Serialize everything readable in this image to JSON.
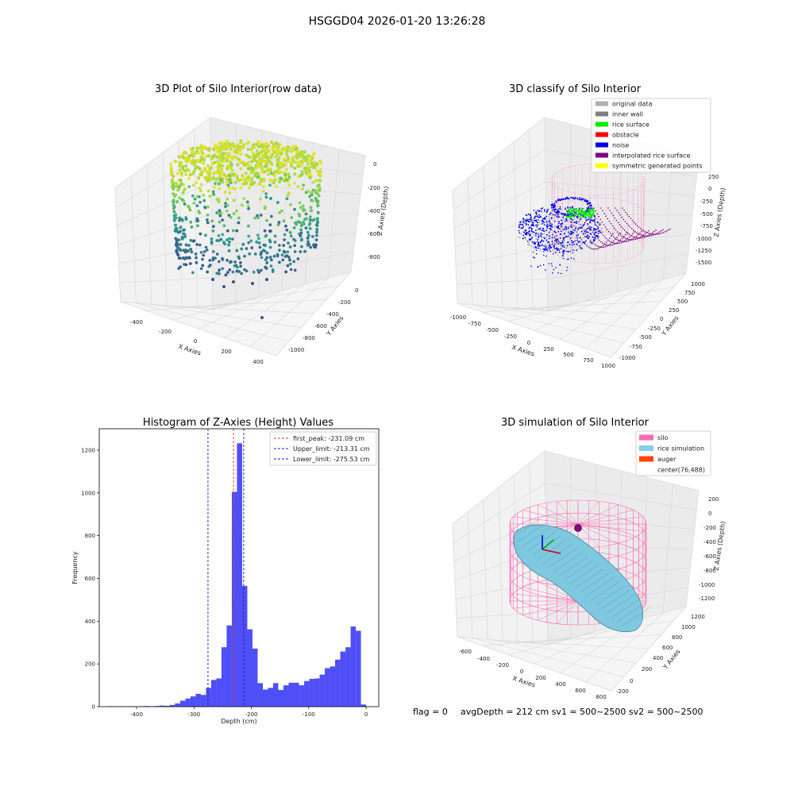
{
  "suptitle": "HSGGD04 2026-01-20 13:26:28",
  "footer": {
    "flag": "flag = 0",
    "stats": "avgDepth = 212 cm  sv1 = 500~2500  sv2 = 500~2500"
  },
  "colors": {
    "hist_bar": "#4f4ff7",
    "peak_line": "#ff2a2a",
    "limit_line": "#1a1acc",
    "silo_wire": "#ff69b4",
    "rice": "#7ec8e0",
    "auger": "#ff4500"
  },
  "plot3d_raw": {
    "title": "3D Plot of Silo Interior(row data)",
    "xlabel": "X Axies",
    "ylabel": "Y Axies",
    "zlabel": "Z Axies (Depth)",
    "xticks": [
      "-400",
      "-200",
      "0",
      "200",
      "400"
    ],
    "yticks": [
      "0",
      "-200",
      "-400",
      "-600",
      "-800",
      "-1000"
    ],
    "zticks": [
      "0",
      "-200",
      "-400",
      "-600",
      "-800"
    ]
  },
  "plot3d_classify": {
    "title": "3D classify of Silo Interior",
    "xlabel": "X Axies",
    "ylabel": "Y Axies",
    "zlabel": "Z Axies (Depth)",
    "xticks": [
      "-1000",
      "-750",
      "-500",
      "-250",
      "0",
      "250",
      "500",
      "750",
      "1000"
    ],
    "yticks": [
      "1000",
      "750",
      "500",
      "250",
      "0",
      "-250",
      "-500",
      "-750",
      "-1000"
    ],
    "zticks": [
      "250",
      "0",
      "-250",
      "-500",
      "-750",
      "-1000",
      "-1250",
      "-1500"
    ],
    "legend": [
      {
        "label": "original data",
        "color": "#b0b0b0"
      },
      {
        "label": "inner wall",
        "color": "#808080"
      },
      {
        "label": "rice surface",
        "color": "#00ee00"
      },
      {
        "label": "obstacle",
        "color": "#ff0000"
      },
      {
        "label": "noise",
        "color": "#0000ee"
      },
      {
        "label": "interpolated rice surface",
        "color": "#800080"
      },
      {
        "label": "symmetric generated points",
        "color": "#ffff00"
      }
    ]
  },
  "plot3d_sim": {
    "title": "3D simulation of Silo Interior",
    "xlabel": "X Axies",
    "ylabel": "Y Axies",
    "zlabel": "Z Axies (Depth)",
    "xticks": [
      "-600",
      "-400",
      "-200",
      "0",
      "200",
      "400",
      "600",
      "800"
    ],
    "yticks": [
      "1200",
      "1000",
      "800",
      "600",
      "400",
      "200",
      "0",
      "-200"
    ],
    "zticks": [
      "200",
      "0",
      "-200",
      "-400",
      "-600",
      "-800",
      "-1000",
      "-1200"
    ],
    "legend": [
      {
        "label": "silo",
        "color": "#ff69b4"
      },
      {
        "label": "rice simulation",
        "color": "#87cde6"
      },
      {
        "label": "auger",
        "color": "#ff4500"
      },
      {
        "label": "center(76,488)",
        "color": "#ffffff"
      }
    ]
  },
  "chart_data": {
    "type": "bar",
    "title": "Histogram of Z-Axies (Height) Values",
    "xlabel": "Depth (cm)",
    "ylabel": "Frequency",
    "xlim": [
      -465,
      22
    ],
    "ylim": [
      0,
      1300
    ],
    "xticks": [
      -400,
      -300,
      -200,
      -100,
      0
    ],
    "yticks": [
      0,
      200,
      400,
      600,
      800,
      1000,
      1200
    ],
    "bin_width": 9,
    "bins": [
      {
        "x0": -450,
        "v": 2
      },
      {
        "x0": -441,
        "v": 1
      },
      {
        "x0": -432,
        "v": 2
      },
      {
        "x0": -423,
        "v": 1
      },
      {
        "x0": -414,
        "v": 2
      },
      {
        "x0": -405,
        "v": 1
      },
      {
        "x0": -396,
        "v": 2
      },
      {
        "x0": -387,
        "v": 3
      },
      {
        "x0": -378,
        "v": 2
      },
      {
        "x0": -369,
        "v": 3
      },
      {
        "x0": -360,
        "v": 5
      },
      {
        "x0": -351,
        "v": 4
      },
      {
        "x0": -342,
        "v": 8
      },
      {
        "x0": -333,
        "v": 15
      },
      {
        "x0": -324,
        "v": 28
      },
      {
        "x0": -315,
        "v": 38
      },
      {
        "x0": -306,
        "v": 48
      },
      {
        "x0": -297,
        "v": 60
      },
      {
        "x0": -288,
        "v": 55
      },
      {
        "x0": -279,
        "v": 88
      },
      {
        "x0": -270,
        "v": 125
      },
      {
        "x0": -261,
        "v": 132
      },
      {
        "x0": -252,
        "v": 278
      },
      {
        "x0": -243,
        "v": 380
      },
      {
        "x0": -234,
        "v": 1005
      },
      {
        "x0": -225,
        "v": 1232
      },
      {
        "x0": -216,
        "v": 565
      },
      {
        "x0": -207,
        "v": 362
      },
      {
        "x0": -198,
        "v": 272
      },
      {
        "x0": -189,
        "v": 110
      },
      {
        "x0": -180,
        "v": 80
      },
      {
        "x0": -171,
        "v": 88
      },
      {
        "x0": -162,
        "v": 110
      },
      {
        "x0": -153,
        "v": 78
      },
      {
        "x0": -144,
        "v": 100
      },
      {
        "x0": -135,
        "v": 112
      },
      {
        "x0": -126,
        "v": 112
      },
      {
        "x0": -117,
        "v": 100
      },
      {
        "x0": -108,
        "v": 120
      },
      {
        "x0": -99,
        "v": 130
      },
      {
        "x0": -90,
        "v": 132
      },
      {
        "x0": -81,
        "v": 150
      },
      {
        "x0": -72,
        "v": 180
      },
      {
        "x0": -63,
        "v": 188
      },
      {
        "x0": -54,
        "v": 220
      },
      {
        "x0": -45,
        "v": 258
      },
      {
        "x0": -36,
        "v": 278
      },
      {
        "x0": -27,
        "v": 375
      },
      {
        "x0": -18,
        "v": 355
      },
      {
        "x0": -9,
        "v": 10
      }
    ],
    "vlines": [
      {
        "name": "first_peak: -231.09 cm",
        "x": -231.09,
        "color": "#ff2a2a"
      },
      {
        "name": "Upper_limit: -213.31 cm",
        "x": -213.31,
        "color": "#1a1acc"
      },
      {
        "name": "Lower_limit: -275.53 cm",
        "x": -275.53,
        "color": "#1a1acc"
      }
    ],
    "legend_position": "upper right"
  }
}
